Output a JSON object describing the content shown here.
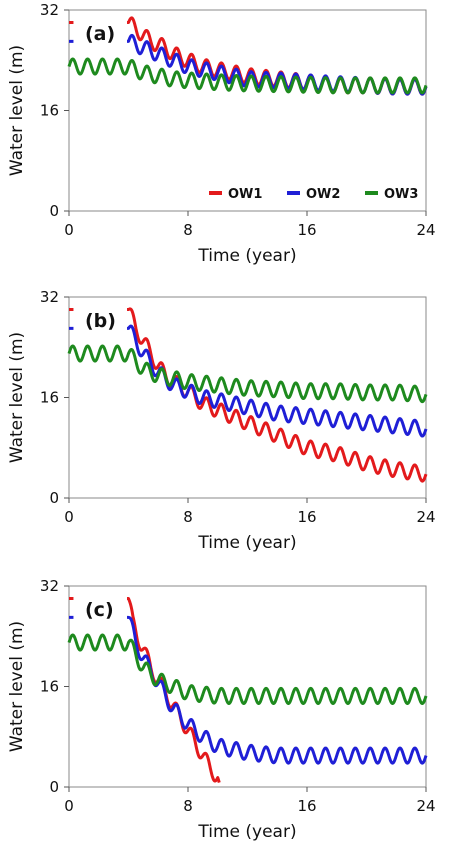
{
  "chart_data": [
    {
      "type": "line",
      "panel_label": "(a)",
      "xlabel": "Time (year)",
      "ylabel": "Water level (m)",
      "xlim": [
        0,
        24
      ],
      "ylim": [
        0,
        32
      ],
      "xticks": [
        "0",
        "8",
        "16",
        "24"
      ],
      "yticks": [
        "0",
        "16",
        "32"
      ],
      "grid": false,
      "legend": {
        "show": true,
        "placement": "bottom-right"
      },
      "colors": {
        "OW1": "#e31a1c",
        "OW2": "#1f1fd6",
        "OW3": "#1e8a1e"
      },
      "series": [
        {
          "name": "OW1",
          "color": "#e31a1c",
          "x": [
            0,
            4,
            4.5,
            5,
            5.5,
            6,
            6.5,
            7,
            8,
            9,
            10,
            11,
            12,
            14,
            16,
            18,
            20,
            22,
            24
          ],
          "y": [
            30,
            30,
            29,
            28,
            27,
            26.5,
            26,
            25,
            24,
            23,
            22.5,
            22,
            21.5,
            21,
            20.5,
            20,
            20,
            19.8,
            19.8
          ],
          "gap": [
            0.3,
            3.9
          ]
        },
        {
          "name": "OW2",
          "color": "#1f1fd6",
          "x": [
            0,
            4,
            4.5,
            5,
            5.5,
            6,
            6.5,
            7,
            8,
            9,
            10,
            11,
            12,
            14,
            16,
            18,
            20,
            22,
            24
          ],
          "y": [
            27,
            27,
            26.5,
            26,
            25.5,
            25,
            24.5,
            24,
            23,
            22.5,
            22,
            21.5,
            21,
            20.8,
            20.5,
            20.2,
            20,
            19.8,
            19.8
          ],
          "gap": [
            0.3,
            3.9
          ]
        },
        {
          "name": "OW3",
          "color": "#1e8a1e",
          "x": [
            0,
            1,
            2,
            3,
            4,
            5,
            6,
            7,
            8,
            10,
            12,
            14,
            16,
            18,
            20,
            22,
            24
          ],
          "y": [
            23,
            23,
            23,
            23,
            23,
            22,
            21.5,
            21,
            20.8,
            20.5,
            20.3,
            20.2,
            20.1,
            20,
            20,
            20,
            20
          ]
        }
      ],
      "legend_entries": [
        "OW1",
        "OW2",
        "OW3"
      ]
    },
    {
      "type": "line",
      "panel_label": "(b)",
      "xlabel": "Time (year)",
      "ylabel": "Water level (m)",
      "xlim": [
        0,
        24
      ],
      "ylim": [
        0,
        32
      ],
      "xticks": [
        "0",
        "8",
        "16",
        "24"
      ],
      "yticks": [
        "0",
        "16",
        "32"
      ],
      "grid": false,
      "series": [
        {
          "name": "OW1",
          "color": "#e31a1c",
          "x": [
            0,
            4,
            4.5,
            5,
            5.5,
            6,
            6.5,
            7,
            8,
            9,
            10,
            11,
            12,
            14,
            16,
            18,
            20,
            22,
            24
          ],
          "y": [
            30,
            30,
            27,
            25,
            23,
            21,
            19.5,
            18.5,
            17,
            15,
            14,
            13,
            12,
            10,
            8,
            7,
            5.5,
            4.5,
            3.8
          ],
          "gap": [
            0.3,
            3.9
          ]
        },
        {
          "name": "OW2",
          "color": "#1f1fd6",
          "x": [
            0,
            4,
            4.5,
            5,
            5.5,
            6,
            6.5,
            7,
            8,
            9,
            10,
            11,
            12,
            14,
            16,
            18,
            20,
            22,
            24
          ],
          "y": [
            27,
            27,
            25,
            23,
            21.5,
            20,
            19,
            18,
            17,
            16,
            15.5,
            15,
            14.5,
            13.5,
            13,
            12.5,
            12,
            11.5,
            11
          ],
          "gap": [
            0.3,
            3.9
          ]
        },
        {
          "name": "OW3",
          "color": "#1e8a1e",
          "x": [
            0,
            1,
            2,
            3,
            4,
            5,
            6,
            7,
            8,
            10,
            12,
            14,
            16,
            18,
            20,
            22,
            24
          ],
          "y": [
            23,
            23,
            23,
            23,
            23,
            20.5,
            19.5,
            19,
            18.5,
            18,
            17.5,
            17.3,
            17,
            17,
            16.8,
            16.8,
            16.5
          ]
        }
      ]
    },
    {
      "type": "line",
      "panel_label": "(c)",
      "xlabel": "Time (year)",
      "ylabel": "Water level (m)",
      "xlim": [
        0,
        24
      ],
      "ylim": [
        0,
        32
      ],
      "xticks": [
        "0",
        "8",
        "16",
        "24"
      ],
      "yticks": [
        "0",
        "16",
        "32"
      ],
      "grid": false,
      "series": [
        {
          "name": "OW1",
          "color": "#e31a1c",
          "x": [
            0,
            4,
            4.3,
            4.6,
            5,
            5.5,
            6,
            6.5,
            7,
            7.5,
            8,
            8.5,
            9,
            9.5,
            10,
            10.1
          ],
          "y": [
            30,
            30,
            26,
            24,
            22,
            19,
            17,
            15,
            13,
            11,
            9,
            7,
            5,
            3,
            1.5,
            0
          ],
          "gap": [
            0.3,
            3.9
          ]
        },
        {
          "name": "OW2",
          "color": "#1f1fd6",
          "x": [
            0,
            4,
            4.5,
            5,
            5.5,
            6,
            6.5,
            7,
            8,
            9,
            10,
            12,
            14,
            16,
            18,
            20,
            22,
            24
          ],
          "y": [
            27,
            27,
            23,
            20.5,
            18.5,
            16.5,
            14.5,
            12.5,
            10,
            8,
            6.5,
            5.5,
            5,
            5,
            5,
            5,
            5,
            5
          ],
          "gap": [
            0.3,
            3.9
          ]
        },
        {
          "name": "OW3",
          "color": "#1e8a1e",
          "x": [
            0,
            1,
            2,
            3,
            4,
            5,
            6,
            7,
            8,
            10,
            12,
            14,
            16,
            18,
            20,
            22,
            24
          ],
          "y": [
            23,
            23,
            23,
            23,
            23,
            19,
            17,
            16,
            15,
            14.5,
            14.5,
            14.5,
            14.5,
            14.5,
            14.5,
            14.5,
            14.5
          ]
        }
      ]
    }
  ]
}
